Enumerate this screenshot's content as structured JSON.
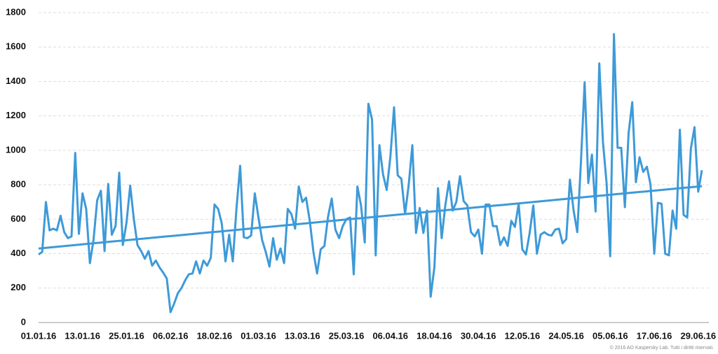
{
  "chart_data": {
    "type": "line",
    "categories": [
      "01.01.16",
      null,
      null,
      null,
      null,
      null,
      null,
      null,
      null,
      null,
      null,
      null,
      "13.01.16",
      null,
      null,
      null,
      null,
      null,
      null,
      null,
      null,
      null,
      null,
      null,
      "25.01.16",
      null,
      null,
      null,
      null,
      null,
      null,
      null,
      null,
      null,
      null,
      null,
      "06.02.16",
      null,
      null,
      null,
      null,
      null,
      null,
      null,
      null,
      null,
      null,
      null,
      "18.02.16",
      null,
      null,
      null,
      null,
      null,
      null,
      null,
      null,
      null,
      null,
      null,
      "01.03.16",
      null,
      null,
      null,
      null,
      null,
      null,
      null,
      null,
      null,
      null,
      null,
      "13.03.16",
      null,
      null,
      null,
      null,
      null,
      null,
      null,
      null,
      null,
      null,
      null,
      "25.03.16",
      null,
      null,
      null,
      null,
      null,
      null,
      null,
      null,
      null,
      null,
      null,
      "06.04.16",
      null,
      null,
      null,
      null,
      null,
      null,
      null,
      null,
      null,
      null,
      null,
      "18.04.16",
      null,
      null,
      null,
      null,
      null,
      null,
      null,
      null,
      null,
      null,
      null,
      "30.04.16",
      null,
      null,
      null,
      null,
      null,
      null,
      null,
      null,
      null,
      null,
      null,
      "12.05.16",
      null,
      null,
      null,
      null,
      null,
      null,
      null,
      null,
      null,
      null,
      null,
      "24.05.16",
      null,
      null,
      null,
      null,
      null,
      null,
      null,
      null,
      null,
      null,
      null,
      "05.06.16",
      null,
      null,
      null,
      null,
      null,
      null,
      null,
      null,
      null,
      null,
      null,
      "17.06.16",
      null,
      null,
      null,
      null,
      null,
      null,
      null,
      null,
      null,
      null,
      null,
      "29.06.16",
      null
    ],
    "series": [
      {
        "color": "#3d9ad8",
        "values": [
          395,
          410,
          700,
          535,
          545,
          535,
          620,
          525,
          490,
          500,
          985,
          515,
          750,
          660,
          345,
          480,
          710,
          765,
          415,
          805,
          510,
          560,
          870,
          450,
          580,
          795,
          600,
          450,
          415,
          370,
          415,
          330,
          360,
          320,
          290,
          255,
          60,
          110,
          170,
          200,
          245,
          280,
          285,
          355,
          285,
          360,
          330,
          375,
          685,
          660,
          575,
          355,
          510,
          355,
          660,
          910,
          495,
          490,
          505,
          750,
          610,
          480,
          410,
          325,
          490,
          365,
          430,
          345,
          660,
          630,
          545,
          790,
          700,
          725,
          590,
          410,
          285,
          425,
          445,
          615,
          720,
          540,
          490,
          560,
          600,
          610,
          280,
          790,
          680,
          465,
          1270,
          1180,
          390,
          1030,
          860,
          770,
          960,
          1250,
          855,
          835,
          630,
          800,
          1030,
          520,
          665,
          520,
          650,
          150,
          320,
          780,
          490,
          680,
          820,
          650,
          700,
          850,
          705,
          680,
          525,
          500,
          540,
          400,
          685,
          685,
          560,
          560,
          450,
          495,
          445,
          590,
          555,
          690,
          425,
          395,
          520,
          680,
          400,
          510,
          525,
          510,
          505,
          540,
          545,
          460,
          485,
          830,
          650,
          525,
          930,
          1395,
          810,
          975,
          645,
          1505,
          1050,
          810,
          385,
          1675,
          1015,
          1015,
          670,
          1100,
          1280,
          815,
          960,
          875,
          905,
          800,
          400,
          695,
          690,
          400,
          390,
          650,
          545,
          1120,
          625,
          610,
          1010,
          1135,
          760,
          885
        ]
      },
      {
        "color": "#3d9ad8",
        "values": [
          430,
          432,
          434,
          436,
          438,
          440,
          442,
          444,
          446,
          448,
          450,
          452,
          454,
          456,
          458,
          460,
          462,
          464,
          466,
          468,
          470,
          472,
          474,
          476,
          478,
          480,
          482,
          484,
          486,
          488,
          490,
          492,
          494,
          496,
          498,
          500,
          502,
          504,
          506,
          508,
          510,
          512,
          514,
          516,
          518,
          520,
          522,
          524,
          526,
          528,
          530,
          532,
          534,
          536,
          538,
          540,
          542,
          544,
          546,
          548,
          550,
          552,
          554,
          556,
          558,
          560,
          562,
          564,
          566,
          568,
          570,
          572,
          574,
          576,
          578,
          580,
          582,
          584,
          586,
          588,
          590,
          592,
          594,
          596,
          598,
          600,
          602,
          604,
          606,
          608,
          610,
          612,
          614,
          616,
          618,
          620,
          622,
          624,
          626,
          628,
          630,
          632,
          634,
          636,
          638,
          640,
          642,
          644,
          646,
          648,
          650,
          652,
          654,
          656,
          658,
          660,
          662,
          664,
          666,
          668,
          670,
          672,
          674,
          676,
          678,
          680,
          682,
          684,
          686,
          688,
          690,
          692,
          694,
          696,
          698,
          700,
          702,
          704,
          706,
          708,
          710,
          712,
          714,
          716,
          718,
          720,
          722,
          724,
          726,
          728,
          730,
          732,
          734,
          736,
          738,
          740,
          742,
          744,
          746,
          748,
          750,
          752,
          754,
          756,
          758,
          760,
          762,
          764,
          766,
          768,
          770,
          772,
          774,
          776,
          778,
          780,
          782,
          784,
          786,
          788,
          790,
          792
        ]
      }
    ],
    "ylim": [
      0,
      1800
    ],
    "yticks": [
      0,
      200,
      400,
      600,
      800,
      1000,
      1200,
      1400,
      1600,
      1800
    ],
    "grid": true,
    "footnote": "© 2016 AO Kaspersky Lab. Tutti i diritti riservati."
  }
}
